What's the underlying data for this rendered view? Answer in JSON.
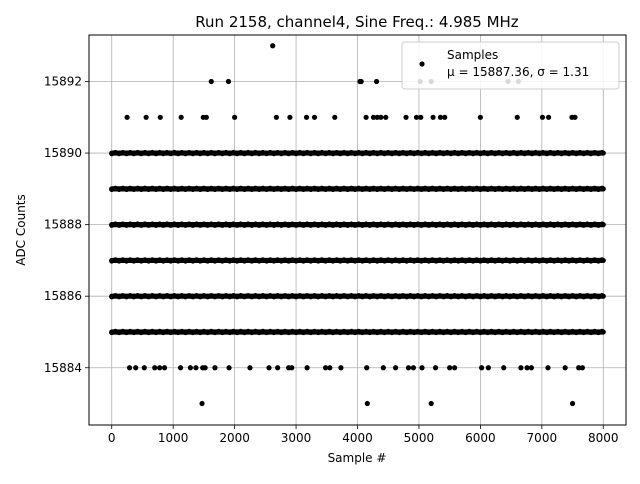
{
  "chart_data": {
    "type": "scatter",
    "title": "Run 2158, channel4, Sine Freq.: 4.985 MHz",
    "xlabel": "Sample #",
    "ylabel": "ADC Counts",
    "xlim": [
      -370,
      8370
    ],
    "ylim": [
      15882.4,
      15893.3
    ],
    "x_ticks": [
      0,
      1000,
      2000,
      3000,
      4000,
      5000,
      6000,
      7000,
      8000
    ],
    "y_ticks": [
      15884,
      15886,
      15888,
      15890,
      15892
    ],
    "grid": true,
    "legend_position": "top-right",
    "series": [
      {
        "name": "Samples",
        "stats_label": "μ = 15887.36, σ = 1.31",
        "color": "#000000",
        "dense_bands": [
          {
            "y": 15885,
            "x_range": [
              0,
              8000
            ]
          },
          {
            "y": 15886,
            "x_range": [
              0,
              8000
            ]
          },
          {
            "y": 15887,
            "x_range": [
              0,
              8000
            ]
          },
          {
            "y": 15888,
            "x_range": [
              0,
              8000
            ]
          },
          {
            "y": 15889,
            "x_range": [
              0,
              8000
            ]
          },
          {
            "y": 15890,
            "x_range": [
              0,
              8000
            ]
          }
        ],
        "points": [
          [
            2620,
            15893
          ],
          [
            1620,
            15892
          ],
          [
            1900,
            15892
          ],
          [
            4040,
            15892
          ],
          [
            4060,
            15892
          ],
          [
            4310,
            15892
          ],
          [
            5020,
            15892
          ],
          [
            5200,
            15892
          ],
          [
            6450,
            15892
          ],
          [
            6620,
            15892
          ],
          [
            250,
            15891
          ],
          [
            560,
            15891
          ],
          [
            790,
            15891
          ],
          [
            1130,
            15891
          ],
          [
            1490,
            15891
          ],
          [
            1540,
            15891
          ],
          [
            2000,
            15891
          ],
          [
            2680,
            15891
          ],
          [
            2900,
            15891
          ],
          [
            3170,
            15891
          ],
          [
            3300,
            15891
          ],
          [
            3630,
            15891
          ],
          [
            4140,
            15891
          ],
          [
            4260,
            15891
          ],
          [
            4320,
            15891
          ],
          [
            4380,
            15891
          ],
          [
            4460,
            15891
          ],
          [
            4790,
            15891
          ],
          [
            4960,
            15891
          ],
          [
            5030,
            15891
          ],
          [
            5230,
            15891
          ],
          [
            5350,
            15891
          ],
          [
            5420,
            15891
          ],
          [
            6000,
            15891
          ],
          [
            6600,
            15891
          ],
          [
            7010,
            15891
          ],
          [
            7110,
            15891
          ],
          [
            7490,
            15891
          ],
          [
            7540,
            15891
          ],
          [
            290,
            15884
          ],
          [
            390,
            15884
          ],
          [
            530,
            15884
          ],
          [
            700,
            15884
          ],
          [
            780,
            15884
          ],
          [
            860,
            15884
          ],
          [
            1120,
            15884
          ],
          [
            1280,
            15884
          ],
          [
            1370,
            15884
          ],
          [
            1480,
            15884
          ],
          [
            1520,
            15884
          ],
          [
            1680,
            15884
          ],
          [
            1910,
            15884
          ],
          [
            2250,
            15884
          ],
          [
            2560,
            15884
          ],
          [
            2700,
            15884
          ],
          [
            2880,
            15884
          ],
          [
            2930,
            15884
          ],
          [
            3180,
            15884
          ],
          [
            3480,
            15884
          ],
          [
            3550,
            15884
          ],
          [
            3730,
            15884
          ],
          [
            4150,
            15884
          ],
          [
            4420,
            15884
          ],
          [
            4620,
            15884
          ],
          [
            4830,
            15884
          ],
          [
            4910,
            15884
          ],
          [
            5050,
            15884
          ],
          [
            5270,
            15884
          ],
          [
            5500,
            15884
          ],
          [
            5580,
            15884
          ],
          [
            6020,
            15884
          ],
          [
            6130,
            15884
          ],
          [
            6380,
            15884
          ],
          [
            6660,
            15884
          ],
          [
            6760,
            15884
          ],
          [
            6830,
            15884
          ],
          [
            7100,
            15884
          ],
          [
            7380,
            15884
          ],
          [
            7600,
            15884
          ],
          [
            7660,
            15884
          ],
          [
            1470,
            15883
          ],
          [
            4160,
            15883
          ],
          [
            5200,
            15883
          ],
          [
            7500,
            15883
          ]
        ]
      }
    ]
  }
}
